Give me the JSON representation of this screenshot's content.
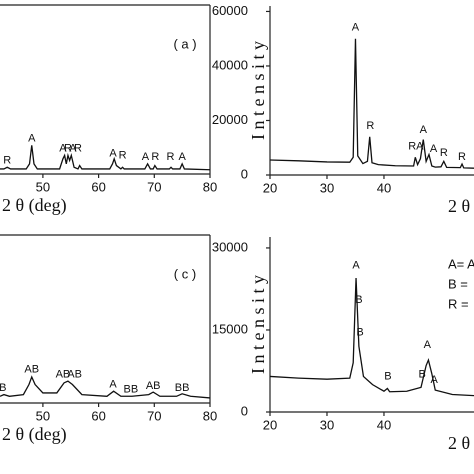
{
  "chart_data": [
    {
      "type": "line",
      "panel_label": "( a )",
      "xlabel": "2 θ (deg)",
      "xlim": [
        42.3,
        80
      ],
      "ylim": [
        0,
        100
      ],
      "xticks": [
        50,
        60,
        70,
        80
      ],
      "color": "#111111",
      "x": [
        42.3,
        43,
        43.6,
        44.2,
        47,
        47.6,
        48,
        48.4,
        49,
        53,
        53.6,
        53.9,
        54.2,
        54.5,
        54.8,
        55.1,
        55.6,
        56.3,
        56.6,
        57,
        62,
        62.5,
        62.8,
        63.2,
        64,
        64.3,
        64.6,
        68.3,
        68.8,
        69.3,
        69.8,
        70.1,
        70.5,
        72.7,
        73,
        73.3,
        74.6,
        75,
        75.4,
        80
      ],
      "values": [
        3,
        3,
        4,
        3,
        3,
        6,
        17,
        6,
        3,
        3,
        9,
        11,
        6,
        11,
        8,
        11,
        4,
        3,
        5,
        3,
        3,
        6,
        9,
        5,
        3,
        4,
        3,
        3,
        6,
        3,
        3,
        5,
        3,
        3,
        4,
        3,
        3,
        6,
        3,
        2.5
      ],
      "annotations": [
        {
          "text": "R",
          "x": 43.6,
          "y": 8
        },
        {
          "text": "A",
          "x": 48,
          "y": 21
        },
        {
          "text": "A",
          "x": 53.6,
          "y": 15
        },
        {
          "text": "R",
          "x": 54.5,
          "y": 15
        },
        {
          "text": "A",
          "x": 55.4,
          "y": 15
        },
        {
          "text": "R",
          "x": 56.3,
          "y": 15
        },
        {
          "text": "A",
          "x": 62.6,
          "y": 12
        },
        {
          "text": "R",
          "x": 64.3,
          "y": 11
        },
        {
          "text": "A",
          "x": 68.4,
          "y": 10
        },
        {
          "text": "R",
          "x": 70.2,
          "y": 10
        },
        {
          "text": "R",
          "x": 72.9,
          "y": 10
        },
        {
          "text": "A",
          "x": 75,
          "y": 10
        }
      ]
    },
    {
      "type": "line",
      "ylabel": "I n t e n s i t y",
      "xlabel": "2 θ",
      "xlim": [
        20,
        55.8
      ],
      "ylim": [
        0,
        62000
      ],
      "xticks": [
        20,
        30,
        40
      ],
      "yticks": [
        0,
        20000,
        40000,
        60000
      ],
      "color": "#111111",
      "x": [
        20,
        25,
        30,
        34,
        34.6,
        35,
        35.4,
        36.3,
        37.1,
        37.5,
        37.9,
        39,
        42,
        45.2,
        45.5,
        45.9,
        46.4,
        46.9,
        47.4,
        47.9,
        48.4,
        49,
        50,
        50.5,
        51,
        53.4,
        53.7,
        54,
        55.8
      ],
      "values": [
        5500,
        5200,
        4800,
        4700,
        6500,
        50000,
        7000,
        4200,
        5000,
        14000,
        4500,
        3800,
        3400,
        3300,
        6500,
        3800,
        6000,
        13000,
        5000,
        7500,
        3300,
        2900,
        3000,
        5000,
        2800,
        2700,
        4000,
        2600,
        2500
      ],
      "annotations": [
        {
          "text": "A",
          "x": 35,
          "y": 54000
        },
        {
          "text": "R",
          "x": 37.6,
          "y": 18000
        },
        {
          "text": "RA",
          "x": 45.6,
          "y": 10500
        },
        {
          "text": "A",
          "x": 46.9,
          "y": 16500
        },
        {
          "text": "A",
          "x": 48.7,
          "y": 9500
        },
        {
          "text": "R",
          "x": 50.5,
          "y": 8000
        },
        {
          "text": "R",
          "x": 53.7,
          "y": 6500
        }
      ]
    },
    {
      "type": "line",
      "panel_label": "( c )",
      "xlabel": "2 θ (deg)",
      "xlim": [
        42.3,
        80
      ],
      "ylim": [
        0,
        100
      ],
      "xticks": [
        50,
        60,
        70,
        80
      ],
      "color": "#111111",
      "x": [
        42.3,
        43,
        44,
        46.5,
        47.5,
        48,
        48.6,
        50,
        52.5,
        53.8,
        54.5,
        55.3,
        57,
        61.5,
        62.7,
        64,
        66,
        69,
        69.8,
        71,
        74,
        75,
        76.5,
        80
      ],
      "values": [
        4,
        5,
        4,
        5,
        11,
        15.5,
        11,
        6,
        6,
        12,
        13,
        11,
        5,
        4,
        7,
        4,
        4,
        5,
        6.5,
        4,
        4,
        5.5,
        4,
        3
      ],
      "annotations": [
        {
          "text": "B",
          "x": 42.8,
          "y": 9
        },
        {
          "text": "AB",
          "x": 48,
          "y": 20
        },
        {
          "text": "AB",
          "x": 53.6,
          "y": 17
        },
        {
          "text": "AB",
          "x": 55.7,
          "y": 17
        },
        {
          "text": "A",
          "x": 62.6,
          "y": 11
        },
        {
          "text": "BB",
          "x": 65.8,
          "y": 8
        },
        {
          "text": "AB",
          "x": 69.8,
          "y": 10
        },
        {
          "text": "BB",
          "x": 75,
          "y": 9
        }
      ]
    },
    {
      "type": "line",
      "ylabel": "I n t e n s i t y",
      "xlabel": "2 θ",
      "xlim": [
        20,
        55.8
      ],
      "ylim": [
        0,
        32000
      ],
      "xticks": [
        20,
        30,
        40
      ],
      "yticks": [
        0,
        15000,
        30000
      ],
      "color": "#111111",
      "x": [
        20,
        25,
        30,
        34,
        34.6,
        35.1,
        35.6,
        36.4,
        38,
        40,
        40.6,
        41,
        44,
        46.5,
        47.4,
        47.8,
        48.4,
        49,
        52,
        55.8
      ],
      "values": [
        6500,
        6200,
        6000,
        6200,
        9000,
        24500,
        12000,
        6500,
        5000,
        3800,
        4300,
        3700,
        3800,
        4500,
        8500,
        9500,
        7000,
        4000,
        3200,
        3000
      ],
      "annotations": [
        {
          "text": "A",
          "x": 35.1,
          "y": 26800
        },
        {
          "text": "B",
          "x": 35.6,
          "y": 20500
        },
        {
          "text": "B",
          "x": 35.8,
          "y": 14500
        },
        {
          "text": "B",
          "x": 40.7,
          "y": 6500
        },
        {
          "text": "B",
          "x": 46.7,
          "y": 6800
        },
        {
          "text": "A",
          "x": 47.6,
          "y": 12200
        },
        {
          "text": "A",
          "x": 48.8,
          "y": 5800
        }
      ],
      "notes": [
        "A= A",
        "B =",
        "R ="
      ]
    }
  ]
}
